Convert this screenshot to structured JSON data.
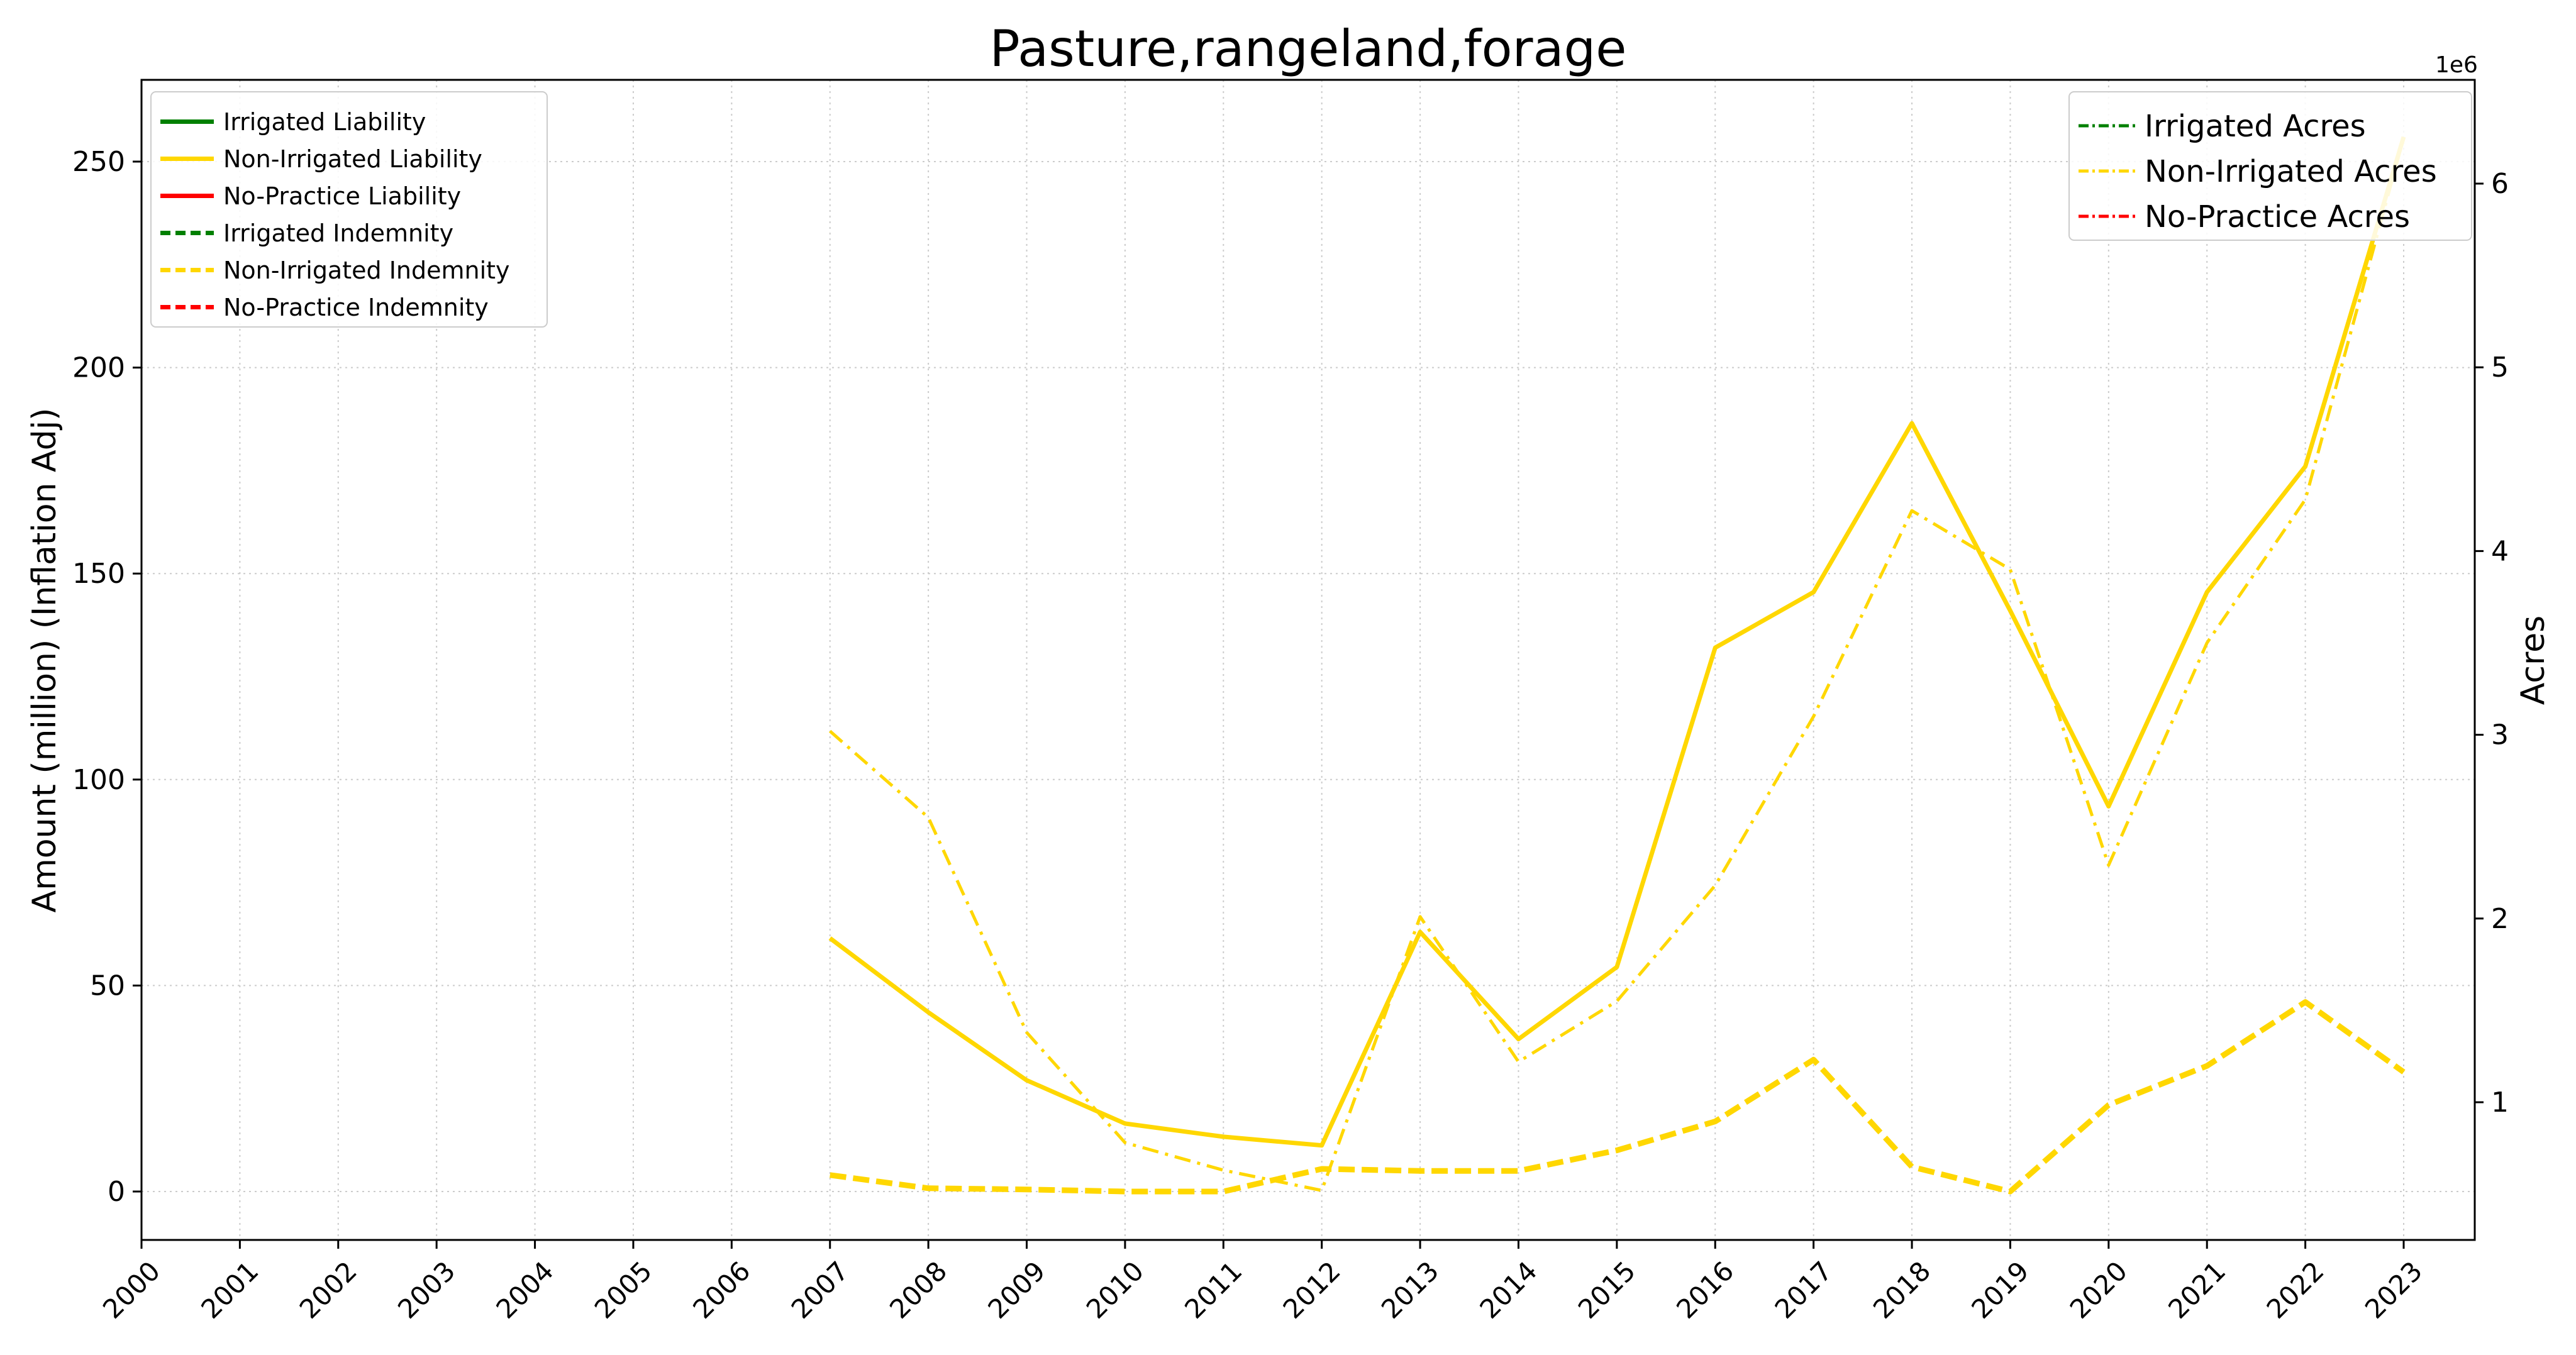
{
  "chart_data": {
    "type": "line",
    "title": "Pasture,rangeland,forage",
    "ylabel": "Amount (million) (Inflation Adj)",
    "y2label": "Acres",
    "y2_offset_label": "1e6",
    "x": [
      2000,
      2001,
      2002,
      2003,
      2004,
      2005,
      2006,
      2007,
      2008,
      2009,
      2010,
      2011,
      2012,
      2013,
      2014,
      2015,
      2016,
      2017,
      2018,
      2019,
      2020,
      2021,
      2022,
      2023
    ],
    "xlim": [
      2000,
      2023
    ],
    "ylim": [
      -13,
      270
    ],
    "y2lim": [
      0.25,
      6.55
    ],
    "yticks": [
      0,
      50,
      100,
      150,
      200,
      250
    ],
    "y2ticks": [
      1,
      2,
      3,
      4,
      5,
      6
    ],
    "grid": true,
    "legend_left_position": "upper-left",
    "legend_right_position": "upper-right",
    "colors": {
      "irrigated": "#008000",
      "non_irrigated": "#FFD700",
      "no_practice": "#FF0000"
    },
    "series": [
      {
        "name": "Irrigated Liability",
        "axis": "left",
        "style": "solid",
        "color": "#008000",
        "x": [],
        "values": []
      },
      {
        "name": "Non-Irrigated Liability",
        "axis": "left",
        "style": "solid",
        "color": "#FFD700",
        "x": [
          2007,
          2008,
          2009,
          2010,
          2011,
          2012,
          2013,
          2014,
          2015,
          2016,
          2017,
          2018,
          2019,
          2020,
          2021,
          2022,
          2023
        ],
        "values": [
          61.5,
          43.5,
          27,
          16.5,
          13.3,
          11.2,
          63,
          37,
          54.5,
          132,
          145.5,
          186.5,
          141,
          93.5,
          145.5,
          176,
          256
        ]
      },
      {
        "name": "No-Practice Liability",
        "axis": "left",
        "style": "solid",
        "color": "#FF0000",
        "x": [],
        "values": []
      },
      {
        "name": "Irrigated Indemnity",
        "axis": "left",
        "style": "dashed",
        "color": "#008000",
        "x": [],
        "values": []
      },
      {
        "name": "Non-Irrigated Indemnity",
        "axis": "left",
        "style": "dashed",
        "color": "#FFD700",
        "x": [
          2007,
          2008,
          2009,
          2010,
          2011,
          2012,
          2013,
          2014,
          2015,
          2016,
          2017,
          2018,
          2019,
          2020,
          2021,
          2022,
          2023
        ],
        "values": [
          4,
          0.8,
          0.5,
          0,
          0,
          5.5,
          5,
          5,
          10,
          17,
          32,
          6,
          0,
          21,
          30.5,
          46,
          29
        ]
      },
      {
        "name": "No-Practice Indemnity",
        "axis": "left",
        "style": "dashed",
        "color": "#FF0000",
        "x": [],
        "values": []
      },
      {
        "name": "Irrigated Acres",
        "axis": "right",
        "style": "dashdot",
        "color": "#008000",
        "x": [],
        "values": []
      },
      {
        "name": "Non-Irrigated Acres",
        "axis": "right",
        "style": "dashdot",
        "color": "#FFD700",
        "x": [
          2007,
          2008,
          2009,
          2010,
          2011,
          2012,
          2013,
          2014,
          2015,
          2016,
          2017,
          2018,
          2019,
          2020,
          2021,
          2022,
          2023
        ],
        "values": [
          3.02,
          2.55,
          1.38,
          0.78,
          0.63,
          0.52,
          2.01,
          1.22,
          1.55,
          2.18,
          3.1,
          4.22,
          3.9,
          2.29,
          3.5,
          4.28,
          6.25
        ]
      },
      {
        "name": "No-Practice Acres",
        "axis": "right",
        "style": "dashdot",
        "color": "#FF0000",
        "x": [],
        "values": []
      }
    ]
  }
}
